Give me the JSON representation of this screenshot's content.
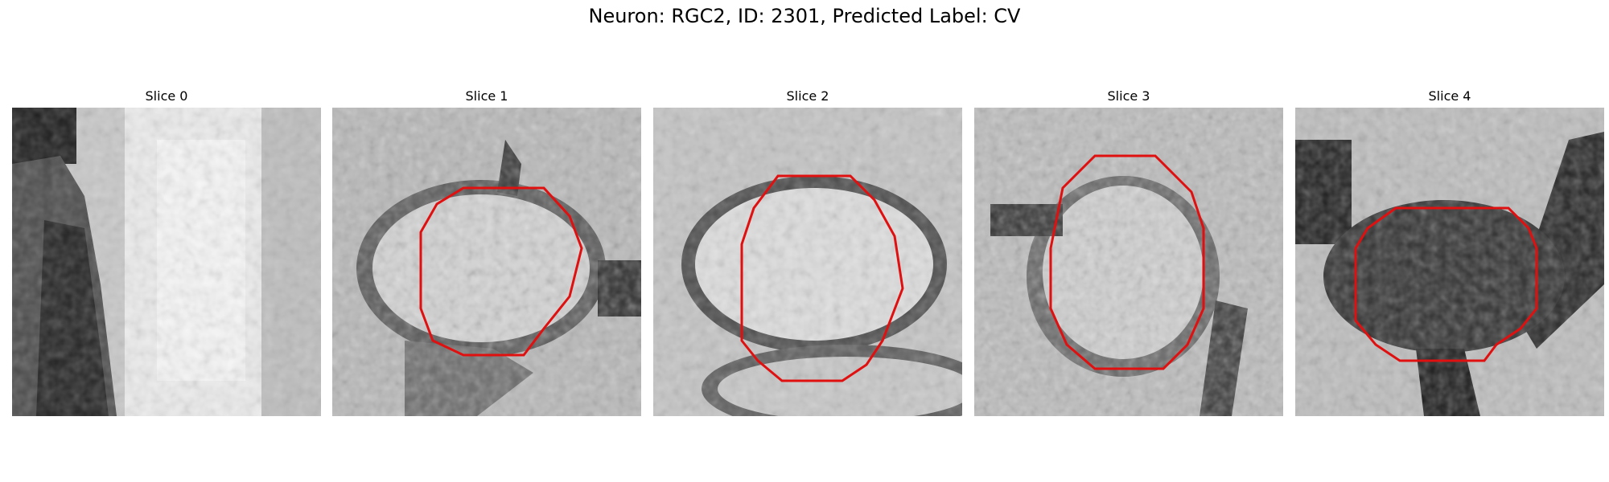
{
  "figure": {
    "title": "Neuron: RGC2, ID: 2301, Predicted Label: CV"
  },
  "panels": [
    {
      "title": "Slice 0",
      "contour": false
    },
    {
      "title": "Slice 1",
      "contour": true
    },
    {
      "title": "Slice 2",
      "contour": true
    },
    {
      "title": "Slice 3",
      "contour": true
    },
    {
      "title": "Slice 4",
      "contour": true
    }
  ],
  "colors": {
    "contour": "#e01010"
  }
}
